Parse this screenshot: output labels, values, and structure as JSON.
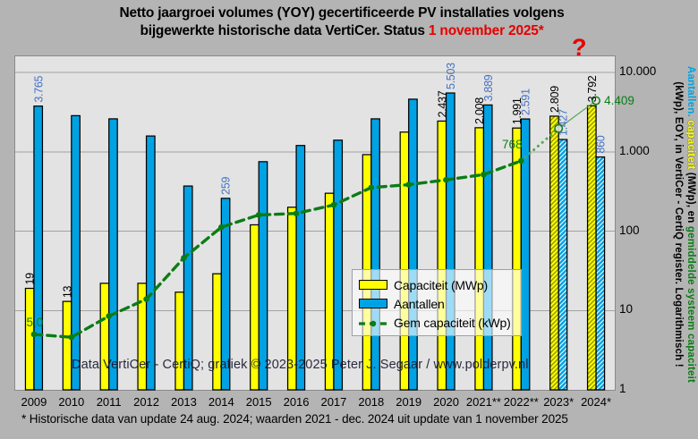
{
  "title": {
    "line1": "Netto jaargroei volumes (YOY) gecertificeerde PV installaties volgens",
    "line2_prefix": "bijgewerkte historische data VertiCer. Status ",
    "line2_highlight": "1 november 2025*"
  },
  "annotations": {
    "question_mark": "?",
    "watermark": "Data VertiCer - CertiQ; grafiek © 2023-2025  Peter J. Segaar / www.polderpv.nl"
  },
  "footnote": "* Historische data van update 24 aug. 2024; waarden 2021 - dec. 2024 uit update van 1 november 2025",
  "right_axis_label": {
    "line1": [
      {
        "text": "Aantallen.",
        "color": "#00a3e0"
      },
      {
        "text": " capaciteit ",
        "color": "#ffff00"
      },
      {
        "text": "(MWp), en ",
        "color": "#000000"
      },
      {
        "text": "gemiddelde systeem capaciteit",
        "color": "#0a7d14"
      }
    ],
    "line2": [
      {
        "text": "(kWp), EOY, in VertiCer - CertiQ register. Logarithmisch !",
        "color": "#000000"
      }
    ]
  },
  "legend": {
    "items": [
      {
        "label": "Capaciteit (MWp)",
        "swatch": "bar",
        "color": "#ffff00"
      },
      {
        "label": "Aantallen",
        "swatch": "bar",
        "color": "#00a2e4"
      },
      {
        "label": "Gem capaciteit (kWp)",
        "swatch": "line",
        "color": "#0a7d14"
      }
    ]
  },
  "colors": {
    "page_bg": "#b4b4b4",
    "plot_bg": "#e3e3e3",
    "grid": "#a2a2a2",
    "bar_capacity": "#ffff00",
    "bar_capacity_hatch": "#8f9400",
    "bar_count": "#00a2e4",
    "bar_border": "#000000",
    "label_capacity": "#000000",
    "label_count": "#4472c4",
    "line_avg": "#0a7d14",
    "line_avg_projection": "#55a65c",
    "highlight_red": "#e60000"
  },
  "chart_data": {
    "type": "bar",
    "subtype": "grouped bars + line overlay",
    "y_scale": "log",
    "ylim": [
      1,
      10000
    ],
    "grid": "horizontal",
    "legend_position": "center",
    "y_ticks": [
      {
        "value": 10000,
        "label": "10.000"
      },
      {
        "value": 1000,
        "label": "1.000"
      },
      {
        "value": 100,
        "label": "100"
      },
      {
        "value": 10,
        "label": "10"
      },
      {
        "value": 1,
        "label": "1"
      }
    ],
    "categories": [
      "2009",
      "2010",
      "2011",
      "2012",
      "2013",
      "2014",
      "2015",
      "2016",
      "2017",
      "2018",
      "2019",
      "2020",
      "2021**",
      "2022**",
      "2023*",
      "2024*"
    ],
    "series": [
      {
        "name": "Capaciteit (MWp)",
        "type": "bar",
        "color": "#ffff00",
        "values": [
          19,
          13,
          22,
          22,
          17,
          29,
          120,
          200,
          300,
          920,
          1770,
          2437,
          2008,
          1991,
          2809,
          3792
        ],
        "labels": [
          "19",
          "13",
          null,
          null,
          null,
          null,
          null,
          null,
          null,
          null,
          null,
          "2.437",
          "2.008",
          "1.991",
          "2.809",
          "3.792"
        ]
      },
      {
        "name": "Aantallen",
        "type": "bar",
        "color": "#00a2e4",
        "values": [
          3765,
          2850,
          2600,
          1580,
          370,
          259,
          750,
          1200,
          1400,
          2600,
          4600,
          5503,
          3889,
          2591,
          1427,
          860
        ],
        "labels": [
          "3.765",
          null,
          null,
          null,
          null,
          "259",
          null,
          null,
          null,
          null,
          null,
          "5.503",
          "3.889",
          "2.591",
          "1.427",
          "860"
        ]
      },
      {
        "name": "Gem capaciteit (kWp)",
        "type": "line",
        "color": "#0a7d14",
        "values": [
          5.0,
          4.6,
          8.5,
          13.9,
          46,
          112,
          160,
          167,
          214,
          354,
          385,
          443,
          516,
          768,
          1968,
          4409
        ],
        "labels": [
          "5,0",
          null,
          null,
          null,
          null,
          null,
          null,
          null,
          null,
          null,
          null,
          null,
          null,
          "768",
          null,
          "4.409"
        ]
      }
    ],
    "hatched_from_index": 14,
    "line_solid_until_index": 13,
    "open_marker_indices": [
      14,
      15
    ]
  }
}
